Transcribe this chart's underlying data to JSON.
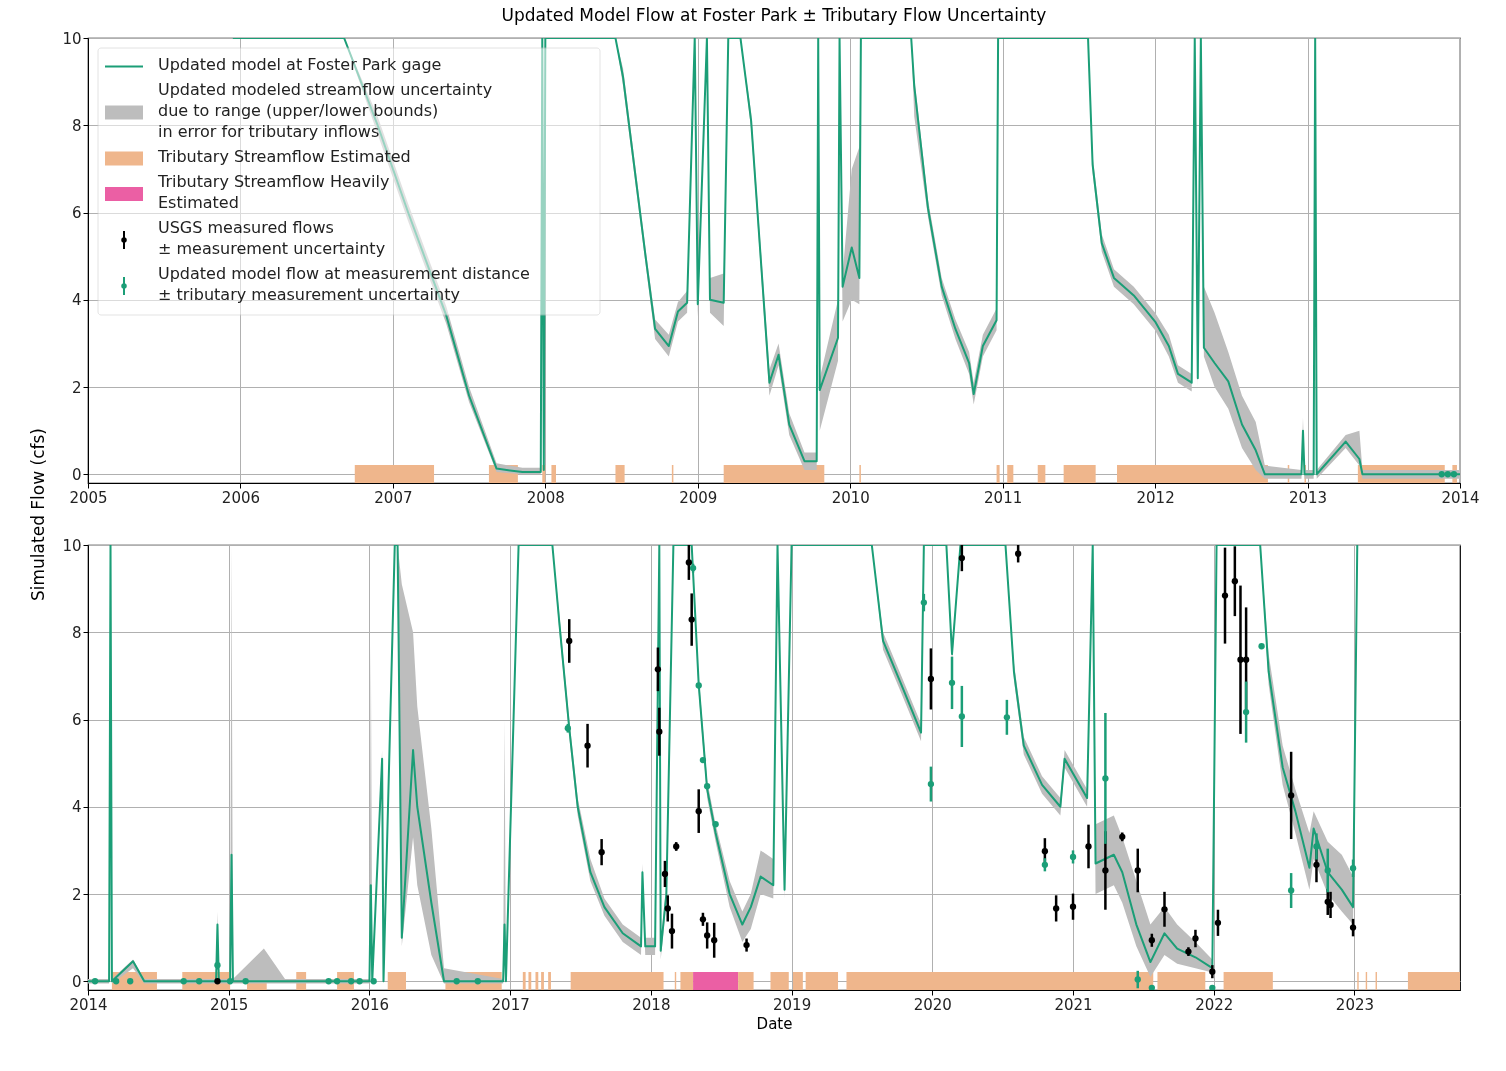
{
  "chart_data": [
    {
      "type": "line",
      "title": "Updated Model Flow at Foster Park ± Tributary Flow Uncertainty",
      "xlim": [
        2005,
        2014
      ],
      "xticks": [
        2005,
        2006,
        2007,
        2008,
        2009,
        2010,
        2011,
        2012,
        2013,
        2014
      ],
      "ylim": [
        -0.2,
        10
      ],
      "yticks": [
        0,
        2,
        4,
        6,
        8,
        10
      ],
      "grid": true,
      "legend": "top left",
      "series": [
        {
          "type": "area",
          "name": "Updated modeled streamflow uncertainty\ndue to range (upper/lower bounds)\nin error for tributary inflows",
          "color": "#bdbdbd"
        },
        {
          "type": "line",
          "name": "Updated model at Foster Park gage",
          "color": "#1b9e77",
          "x": [
            2005.95,
            2006.68,
            2006.9,
            2007.1,
            2007.35,
            2007.5,
            2007.68,
            2007.85,
            2007.97,
            2007.98,
            2007.99,
            2008.0,
            2008.46,
            2008.51,
            2008.66,
            2008.72,
            2008.81,
            2008.87,
            2008.93,
            2008.98,
            2009.0,
            2009.06,
            2009.08,
            2009.17,
            2009.2,
            2009.28,
            2009.35,
            2009.47,
            2009.53,
            2009.6,
            2009.7,
            2009.78,
            2009.79,
            2009.8,
            2009.92,
            2009.93,
            2009.95,
            2010.01,
            2010.06,
            2010.07,
            2010.4,
            2010.42,
            2010.51,
            2010.6,
            2010.69,
            2010.78,
            2010.81,
            2010.87,
            2010.96,
            2010.97,
            2011.56,
            2011.59,
            2011.65,
            2011.73,
            2011.86,
            2012.0,
            2012.09,
            2012.15,
            2012.24,
            2012.26,
            2012.28,
            2012.3,
            2012.32,
            2012.39,
            2012.48,
            2012.57,
            2012.66,
            2012.72,
            2012.96,
            2012.97,
            2012.98,
            2013.04,
            2013.05,
            2013.06,
            2013.25,
            2013.34,
            2013.36,
            2014.0
          ],
          "values": [
            10,
            10,
            8.0,
            6.0,
            3.64,
            1.8,
            0.13,
            0.05,
            0.05,
            10,
            0.1,
            10,
            10,
            9.1,
            4.93,
            3.33,
            2.94,
            3.73,
            3.93,
            10,
            3.9,
            10,
            4.0,
            3.93,
            10,
            10,
            8.1,
            2.1,
            2.74,
            1.14,
            0.3,
            0.3,
            10,
            1.93,
            3.13,
            10,
            4.3,
            5.2,
            4.5,
            10,
            10,
            8.9,
            6.1,
            4.3,
            3.33,
            2.55,
            1.84,
            2.94,
            3.53,
            10,
            10,
            7.1,
            5.3,
            4.5,
            4.1,
            3.5,
            2.94,
            2.3,
            2.1,
            10,
            2.2,
            10,
            2.9,
            2.55,
            2.13,
            1.14,
            0.55,
            0,
            0,
            1.0,
            0,
            0,
            10,
            0,
            0.75,
            0.35,
            0,
            0
          ],
          "upper": [
            10,
            10,
            8.2,
            6.2,
            3.85,
            2.0,
            0.25,
            0.15,
            0.15,
            10,
            0.2,
            10,
            10,
            9.3,
            5.1,
            3.55,
            3.2,
            3.95,
            4.2,
            10,
            4.2,
            10,
            4.5,
            4.6,
            10,
            10,
            8.3,
            2.4,
            3.0,
            1.4,
            0.5,
            0.5,
            10,
            2.2,
            4.0,
            10,
            4.6,
            7.0,
            7.5,
            10,
            10,
            9.1,
            6.3,
            4.5,
            3.55,
            2.8,
            2.1,
            3.2,
            3.8,
            10,
            10,
            7.3,
            5.5,
            4.7,
            4.3,
            3.7,
            3.2,
            2.5,
            2.3,
            10,
            2.5,
            10,
            4.3,
            3.7,
            2.8,
            1.8,
            1.2,
            0.2,
            0.1,
            1.3,
            0.1,
            0.1,
            10,
            0.1,
            0.9,
            1.0,
            0.1,
            0.1
          ],
          "lower": [
            10,
            10,
            7.8,
            5.8,
            3.45,
            1.65,
            0.05,
            0,
            0,
            10,
            0,
            10,
            10,
            8.9,
            4.75,
            3.1,
            2.7,
            3.5,
            3.7,
            10,
            3.6,
            10,
            3.7,
            3.4,
            10,
            10,
            7.9,
            1.8,
            2.5,
            0.9,
            0.1,
            0.1,
            10,
            1.0,
            2.6,
            10,
            3.5,
            4.0,
            3.9,
            10,
            10,
            8.2,
            5.9,
            4.1,
            3.1,
            2.3,
            1.6,
            2.7,
            3.3,
            10,
            10,
            6.9,
            5.1,
            4.3,
            3.9,
            3.3,
            2.7,
            2.1,
            1.9,
            10,
            2.0,
            10,
            2.7,
            2.0,
            1.5,
            0.6,
            0.1,
            -0.1,
            -0.1,
            0.9,
            -0.1,
            -0.1,
            10,
            -0.1,
            0.6,
            0.2,
            -0.1,
            -0.1
          ]
        },
        {
          "type": "scatter",
          "color": "#1b9e77",
          "x": [
            2013.88,
            2013.92,
            2013.96
          ],
          "values": [
            0,
            0,
            0
          ]
        }
      ],
      "bands": [
        {
          "axis": "x",
          "from": 2006.75,
          "to": 2007.27,
          "color": "#efb68c",
          "label": "Tributary Streamflow Estimated"
        },
        {
          "axis": "x",
          "from": 2007.63,
          "to": 2007.82,
          "color": "#efb68c"
        },
        {
          "axis": "x",
          "from": 2007.98,
          "to": 2008.0,
          "color": "#efb68c"
        },
        {
          "axis": "x",
          "from": 2008.04,
          "to": 2008.07,
          "color": "#efb68c"
        },
        {
          "axis": "x",
          "from": 2008.46,
          "to": 2008.52,
          "color": "#efb68c"
        },
        {
          "axis": "x",
          "from": 2008.83,
          "to": 2008.84,
          "color": "#efb68c"
        },
        {
          "axis": "x",
          "from": 2009.17,
          "to": 2009.83,
          "color": "#efb68c"
        },
        {
          "axis": "x",
          "from": 2010.06,
          "to": 2010.07,
          "color": "#efb68c"
        },
        {
          "axis": "x",
          "from": 2010.96,
          "to": 2010.98,
          "color": "#efb68c"
        },
        {
          "axis": "x",
          "from": 2011.03,
          "to": 2011.07,
          "color": "#efb68c"
        },
        {
          "axis": "x",
          "from": 2011.23,
          "to": 2011.28,
          "color": "#efb68c"
        },
        {
          "axis": "x",
          "from": 2011.4,
          "to": 2011.61,
          "color": "#efb68c"
        },
        {
          "axis": "x",
          "from": 2011.75,
          "to": 2012.74,
          "color": "#efb68c"
        },
        {
          "axis": "x",
          "from": 2012.87,
          "to": 2012.88,
          "color": "#efb68c"
        },
        {
          "axis": "x",
          "from": 2012.98,
          "to": 2012.99,
          "color": "#efb68c"
        },
        {
          "axis": "x",
          "from": 2013.33,
          "to": 2013.9,
          "color": "#efb68c"
        },
        {
          "axis": "x",
          "from": 2013.95,
          "to": 2013.98,
          "color": "#efb68c"
        }
      ]
    },
    {
      "type": "line",
      "xlabel": "Date",
      "ylabel": "Simulated Flow (cfs)",
      "xlim": [
        2014,
        2023.75
      ],
      "xticks": [
        2014,
        2015,
        2016,
        2017,
        2018,
        2019,
        2020,
        2021,
        2022,
        2023
      ],
      "ylim": [
        -0.2,
        10
      ],
      "yticks": [
        0,
        2,
        4,
        6,
        8,
        10
      ],
      "grid": true,
      "legend": "top left",
      "series": [
        {
          "type": "area",
          "color": "#bdbdbd"
        },
        {
          "type": "line",
          "color": "#1b9e77",
          "x": [
            2014.0,
            2014.15,
            2014.16,
            2014.17,
            2014.32,
            2014.4,
            2014.91,
            2014.92,
            2014.93,
            2015.01,
            2015.02,
            2015.03,
            2015.25,
            2015.4,
            2016.0,
            2016.01,
            2016.02,
            2016.09,
            2016.1,
            2016.18,
            2016.2,
            2016.23,
            2016.31,
            2016.34,
            2016.44,
            2016.53,
            2016.95,
            2016.96,
            2016.97,
            2017.06,
            2017.3,
            2017.35,
            2017.42,
            2017.48,
            2017.57,
            2017.67,
            2017.8,
            2017.93,
            2017.94,
            2017.96,
            2018.03,
            2018.06,
            2018.07,
            2018.11,
            2018.16,
            2018.29,
            2018.34,
            2018.4,
            2018.46,
            2018.56,
            2018.65,
            2018.71,
            2018.78,
            2018.87,
            2018.9,
            2018.95,
            2019.0,
            2019.57,
            2019.65,
            2019.78,
            2019.92,
            2019.94,
            2020.1,
            2020.14,
            2020.2,
            2020.52,
            2020.58,
            2020.65,
            2020.78,
            2020.91,
            2020.94,
            2021.1,
            2021.14,
            2021.16,
            2021.29,
            2021.35,
            2021.45,
            2021.55,
            2021.65,
            2021.74,
            2021.87,
            2021.99,
            2022.02,
            2022.33,
            2022.39,
            2022.49,
            2022.58,
            2022.68,
            2022.71,
            2022.81,
            2022.91,
            2022.99,
            2023.02
          ],
          "values": [
            0,
            0,
            10,
            0,
            0.46,
            0,
            0,
            1.3,
            0,
            0,
            2.9,
            0,
            0,
            0,
            0,
            2.2,
            0,
            5.1,
            0,
            10,
            10,
            1.0,
            5.3,
            4.0,
            1.8,
            0,
            0,
            1.3,
            0,
            10,
            10,
            8.2,
            5.8,
            4.0,
            2.5,
            1.7,
            1.1,
            0.8,
            2.5,
            0.8,
            0.8,
            10,
            0.7,
            2.0,
            10,
            10,
            6.8,
            4.4,
            3.4,
            2.0,
            1.3,
            1.7,
            2.4,
            2.2,
            10,
            2.1,
            10,
            10,
            7.8,
            6.8,
            5.7,
            10,
            10,
            7.5,
            10,
            10,
            7.1,
            5.4,
            4.5,
            4.0,
            5.1,
            4.2,
            10,
            2.7,
            2.9,
            2.5,
            1.3,
            0.44,
            1.1,
            0.75,
            0.55,
            0.3,
            10,
            10,
            7.1,
            4.9,
            3.9,
            2.6,
            3.5,
            2.5,
            2.1,
            1.7,
            10
          ],
          "upper": [
            0.05,
            0.05,
            10,
            0.05,
            0.5,
            0.05,
            0.05,
            1.6,
            0.05,
            0.05,
            10,
            0.05,
            0.75,
            0.05,
            0.05,
            7.7,
            0.05,
            5.3,
            0.05,
            10,
            10,
            9.1,
            8.0,
            6.3,
            3.5,
            0.3,
            0.05,
            6.0,
            0.05,
            10,
            10,
            8.4,
            6.0,
            4.2,
            2.8,
            1.9,
            1.3,
            1.0,
            2.7,
            1.0,
            1.0,
            10,
            0.9,
            2.2,
            10,
            10,
            7.0,
            4.6,
            3.6,
            2.3,
            1.6,
            2.0,
            3.0,
            2.8,
            10,
            2.6,
            10,
            10,
            8.0,
            7.0,
            5.9,
            10,
            10,
            7.7,
            10,
            10,
            7.3,
            5.6,
            4.7,
            4.2,
            5.3,
            4.4,
            10,
            3.6,
            3.8,
            3.3,
            2.3,
            1.3,
            1.7,
            1.3,
            0.9,
            0.5,
            10,
            10,
            7.5,
            5.4,
            4.4,
            3.4,
            3.9,
            3.2,
            2.9,
            2.4,
            10
          ],
          "lower": [
            -0.05,
            -0.05,
            10,
            -0.05,
            0.3,
            -0.05,
            -0.05,
            1.2,
            -0.05,
            -0.05,
            2.8,
            -0.05,
            -0.05,
            -0.05,
            -0.05,
            2.0,
            -0.05,
            4.9,
            -0.05,
            10,
            10,
            0.8,
            3.3,
            2.2,
            0.6,
            -0.05,
            -0.05,
            1.2,
            -0.05,
            10,
            10,
            8.0,
            5.6,
            3.8,
            2.3,
            1.5,
            0.9,
            0.6,
            2.3,
            0.6,
            0.6,
            10,
            0.5,
            1.8,
            10,
            10,
            6.6,
            4.2,
            3.2,
            1.7,
            0.9,
            1.2,
            2.0,
            1.9,
            10,
            1.9,
            10,
            10,
            7.6,
            6.6,
            5.5,
            10,
            10,
            7.3,
            10,
            10,
            6.9,
            5.2,
            4.3,
            3.8,
            4.9,
            4.0,
            10,
            2.0,
            2.2,
            1.8,
            0.8,
            0.1,
            0.6,
            0.4,
            0.3,
            0.2,
            10,
            10,
            6.8,
            4.5,
            3.4,
            2.1,
            2.8,
            2.0,
            1.6,
            1.3,
            10
          ]
        },
        {
          "type": "scatter",
          "name": "USGS measured flows\n± measurement uncertainty",
          "color": "#000000",
          "x": [
            2014.92,
            2017.42,
            2017.55,
            2017.65,
            2018.05,
            2018.06,
            2018.1,
            2018.12,
            2018.15,
            2018.18,
            2018.27,
            2018.29,
            2018.34,
            2018.37,
            2018.4,
            2018.45,
            2018.68,
            2019.99,
            2020.21,
            2020.61,
            2020.8,
            2020.88,
            2021.0,
            2021.11,
            2021.23,
            2021.35,
            2021.46,
            2021.56,
            2021.65,
            2021.82,
            2021.87,
            2021.99,
            2022.03,
            2022.08,
            2022.15,
            2022.19,
            2022.23,
            2022.55,
            2022.73,
            2022.81,
            2022.83,
            2022.99
          ],
          "values": [
            0,
            7.8,
            5.4,
            2.96,
            7.15,
            5.72,
            2.46,
            1.67,
            1.15,
            3.09,
            9.6,
            8.29,
            3.9,
            1.42,
            1.05,
            0.94,
            0.83,
            6.93,
            9.7,
            9.8,
            2.98,
            1.67,
            1.71,
            3.09,
            2.54,
            3.31,
            2.54,
            0.94,
            1.65,
            0.68,
            0.98,
            0.22,
            1.34,
            8.84,
            9.17,
            7.37,
            7.37,
            4.26,
            2.67,
            1.82,
            1.75,
            1.23
          ],
          "errors": [
            null,
            0.5,
            0.5,
            0.3,
            0.5,
            0.55,
            0.3,
            0.3,
            0.4,
            0.1,
            0.4,
            0.6,
            0.5,
            0.15,
            0.3,
            0.4,
            0.15,
            0.7,
            0.3,
            0.2,
            0.3,
            0.3,
            0.3,
            0.5,
            0.9,
            0.1,
            0.5,
            0.15,
            0.4,
            0.1,
            0.2,
            0.15,
            0.3,
            1.1,
            0.8,
            1.7,
            1.2,
            1.0,
            0.4,
            0.3,
            0.3,
            0.2
          ]
        },
        {
          "type": "scatter",
          "name": "Updated model flow at measurement distance\n± tributary measurement uncertainty",
          "color": "#1b9e77",
          "x": [
            2014.05,
            2014.2,
            2014.3,
            2014.68,
            2014.79,
            2014.92,
            2015.01,
            2015.12,
            2015.71,
            2015.77,
            2015.87,
            2015.93,
            2016.03,
            2016.62,
            2016.77,
            2017.41,
            2018.3,
            2018.34,
            2018.37,
            2018.4,
            2018.46,
            2019.94,
            2019.99,
            2020.14,
            2020.21,
            2020.53,
            2020.8,
            2021.0,
            2021.23,
            2021.46,
            2021.56,
            2021.99,
            2022.23,
            2022.34,
            2022.55,
            2022.73,
            2022.81,
            2022.99
          ],
          "values": [
            0,
            0,
            0,
            0,
            0,
            0.37,
            0,
            0,
            0,
            0,
            0,
            0,
            0,
            0,
            0,
            5.8,
            9.47,
            6.78,
            5.07,
            4.47,
            3.6,
            8.68,
            4.52,
            6.84,
            6.07,
            6.05,
            2.67,
            2.85,
            4.65,
            0.04,
            -0.15,
            -0.15,
            6.17,
            7.68,
            2.08,
            3.09,
            2.54,
            2.59
          ],
          "errors": [
            null,
            null,
            null,
            null,
            null,
            0.1,
            null,
            null,
            null,
            null,
            null,
            null,
            null,
            null,
            null,
            0.1,
            0.1,
            null,
            null,
            null,
            null,
            0.2,
            0.4,
            0.6,
            0.7,
            0.4,
            0.15,
            0.15,
            1.5,
            0.2,
            null,
            null,
            0.7,
            null,
            0.4,
            0.3,
            0.5,
            0.2
          ]
        }
      ],
      "bands": [
        {
          "axis": "x",
          "from": 2014.17,
          "to": 2014.49,
          "color": "#efb68c"
        },
        {
          "axis": "x",
          "from": 2014.67,
          "to": 2015.01,
          "color": "#efb68c"
        },
        {
          "axis": "x",
          "from": 2015.13,
          "to": 2015.27,
          "color": "#efb68c"
        },
        {
          "axis": "x",
          "from": 2015.48,
          "to": 2015.55,
          "color": "#efb68c"
        },
        {
          "axis": "x",
          "from": 2015.77,
          "to": 2015.89,
          "color": "#efb68c"
        },
        {
          "axis": "x",
          "from": 2016.13,
          "to": 2016.26,
          "color": "#efb68c"
        },
        {
          "axis": "x",
          "from": 2016.54,
          "to": 2016.94,
          "color": "#efb68c"
        },
        {
          "axis": "x",
          "from": 2017.09,
          "to": 2017.11,
          "color": "#efb68c"
        },
        {
          "axis": "x",
          "from": 2017.13,
          "to": 2017.15,
          "color": "#efb68c"
        },
        {
          "axis": "x",
          "from": 2017.18,
          "to": 2017.2,
          "color": "#efb68c"
        },
        {
          "axis": "x",
          "from": 2017.22,
          "to": 2017.24,
          "color": "#efb68c"
        },
        {
          "axis": "x",
          "from": 2017.27,
          "to": 2017.29,
          "color": "#efb68c"
        },
        {
          "axis": "x",
          "from": 2017.43,
          "to": 2018.09,
          "color": "#efb68c"
        },
        {
          "axis": "x",
          "from": 2018.17,
          "to": 2018.18,
          "color": "#efb68c"
        },
        {
          "axis": "x",
          "from": 2018.21,
          "to": 2018.3,
          "color": "#efb68c"
        },
        {
          "axis": "x",
          "from": 2018.3,
          "to": 2018.62,
          "color": "#eb5fa4",
          "label": "Tributary Streamflow Heavily\nEstimated"
        },
        {
          "axis": "x",
          "from": 2018.62,
          "to": 2018.73,
          "color": "#efb68c"
        },
        {
          "axis": "x",
          "from": 2018.85,
          "to": 2018.98,
          "color": "#efb68c"
        },
        {
          "axis": "x",
          "from": 2019.01,
          "to": 2019.08,
          "color": "#efb68c"
        },
        {
          "axis": "x",
          "from": 2019.1,
          "to": 2019.33,
          "color": "#efb68c"
        },
        {
          "axis": "x",
          "from": 2019.39,
          "to": 2021.57,
          "color": "#efb68c"
        },
        {
          "axis": "x",
          "from": 2021.6,
          "to": 2021.94,
          "color": "#efb68c"
        },
        {
          "axis": "x",
          "from": 2022.07,
          "to": 2022.42,
          "color": "#efb68c"
        },
        {
          "axis": "x",
          "from": 2023.02,
          "to": 2023.03,
          "color": "#efb68c"
        },
        {
          "axis": "x",
          "from": 2023.08,
          "to": 2023.09,
          "color": "#efb68c"
        },
        {
          "axis": "x",
          "from": 2023.15,
          "to": 2023.16,
          "color": "#efb68c"
        },
        {
          "axis": "x",
          "from": 2023.38,
          "to": 2023.75,
          "color": "#efb68c"
        }
      ]
    }
  ]
}
